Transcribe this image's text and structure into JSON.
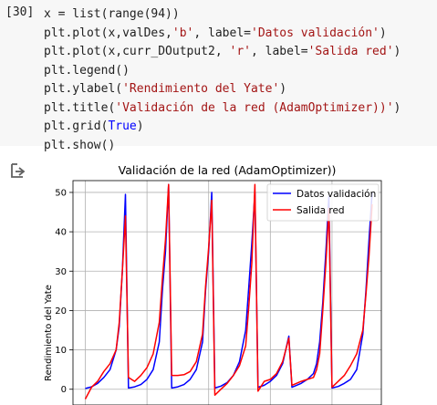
{
  "cell": {
    "execution_count": "[30]",
    "code": [
      {
        "parts": [
          {
            "t": "x = list(range(94))",
            "c": ""
          }
        ]
      },
      {
        "parts": [
          {
            "t": "plt.plot(x,valDes,",
            "c": ""
          },
          {
            "t": "'b'",
            "c": "k-str"
          },
          {
            "t": ", label=",
            "c": ""
          },
          {
            "t": "'Datos validación'",
            "c": "k-str"
          },
          {
            "t": ")",
            "c": ""
          }
        ]
      },
      {
        "parts": [
          {
            "t": "plt.plot(x,curr_DOutput2, ",
            "c": ""
          },
          {
            "t": "'r'",
            "c": "k-str"
          },
          {
            "t": ", label=",
            "c": ""
          },
          {
            "t": "'Salida red'",
            "c": "k-str"
          },
          {
            "t": ")",
            "c": ""
          }
        ]
      },
      {
        "parts": [
          {
            "t": "plt.legend()",
            "c": ""
          }
        ]
      },
      {
        "parts": [
          {
            "t": "plt.ylabel(",
            "c": ""
          },
          {
            "t": "'Rendimiento del Yate'",
            "c": "k-str"
          },
          {
            "t": ")",
            "c": ""
          }
        ]
      },
      {
        "parts": [
          {
            "t": "plt.title(",
            "c": ""
          },
          {
            "t": "'Validación de la red (AdamOptimizer))'",
            "c": "k-str"
          },
          {
            "t": ")",
            "c": ""
          }
        ]
      },
      {
        "parts": [
          {
            "t": "plt.grid(",
            "c": ""
          },
          {
            "t": "True",
            "c": "k-kw"
          },
          {
            "t": ")",
            "c": ""
          }
        ]
      },
      {
        "parts": [
          {
            "t": "plt.show()",
            "c": ""
          }
        ]
      }
    ],
    "output_icon": "output-arrow-icon"
  },
  "chart_data": {
    "type": "line",
    "title": "Validación de la red (AdamOptimizer))",
    "xlabel": "",
    "ylabel": "Rendimiento del Yate",
    "xlim": [
      -4,
      96
    ],
    "ylim": [
      -4,
      53
    ],
    "xticks": [
      0,
      20,
      40,
      60,
      80
    ],
    "yticks": [
      0,
      10,
      20,
      30,
      40,
      50
    ],
    "grid": true,
    "legend_position": "top-right",
    "series": [
      {
        "name": "Datos validación",
        "color": "#0000ff",
        "points": [
          [
            0,
            0.2
          ],
          [
            2,
            0.6
          ],
          [
            4,
            1.5
          ],
          [
            6,
            3
          ],
          [
            8,
            5
          ],
          [
            10,
            10
          ],
          [
            11,
            16
          ],
          [
            12,
            30
          ],
          [
            13,
            49.5
          ],
          [
            14,
            0.3
          ],
          [
            16,
            0.6
          ],
          [
            18,
            1.2
          ],
          [
            20,
            2.5
          ],
          [
            22,
            5
          ],
          [
            24,
            12
          ],
          [
            25,
            25
          ],
          [
            26,
            35
          ],
          [
            27,
            52
          ],
          [
            28,
            0.3
          ],
          [
            30,
            0.6
          ],
          [
            32,
            1.2
          ],
          [
            34,
            2.5
          ],
          [
            36,
            5
          ],
          [
            38,
            12
          ],
          [
            39,
            25
          ],
          [
            40,
            35
          ],
          [
            41,
            50
          ],
          [
            42,
            0.3
          ],
          [
            44,
            0.8
          ],
          [
            46,
            1.7
          ],
          [
            48,
            3.5
          ],
          [
            50,
            7
          ],
          [
            52,
            15
          ],
          [
            53,
            26
          ],
          [
            54,
            37
          ],
          [
            55,
            50
          ],
          [
            56,
            0.5
          ],
          [
            58,
            1
          ],
          [
            60,
            2
          ],
          [
            62,
            3.5
          ],
          [
            64,
            6.5
          ],
          [
            65,
            10
          ],
          [
            66,
            13.5
          ],
          [
            67,
            0.5
          ],
          [
            70,
            1.5
          ],
          [
            72,
            2.5
          ],
          [
            74,
            4
          ],
          [
            75,
            6.5
          ],
          [
            76,
            12
          ],
          [
            77,
            22
          ],
          [
            78,
            35
          ],
          [
            79,
            49
          ],
          [
            80,
            0.3
          ],
          [
            82,
            0.7
          ],
          [
            84,
            1.5
          ],
          [
            86,
            2.5
          ],
          [
            88,
            5
          ],
          [
            90,
            14
          ],
          [
            91,
            25
          ],
          [
            92,
            38
          ],
          [
            93,
            50
          ]
        ]
      },
      {
        "name": "Salida red",
        "color": "#ff0000",
        "points": [
          [
            0,
            -2.5
          ],
          [
            2,
            0.5
          ],
          [
            4,
            2
          ],
          [
            6,
            4.5
          ],
          [
            8,
            6.5
          ],
          [
            10,
            10
          ],
          [
            11,
            17
          ],
          [
            12,
            30
          ],
          [
            13,
            44
          ],
          [
            14,
            3
          ],
          [
            16,
            2
          ],
          [
            18,
            3.5
          ],
          [
            20,
            5.5
          ],
          [
            22,
            9
          ],
          [
            24,
            17
          ],
          [
            25,
            28
          ],
          [
            26,
            38
          ],
          [
            27,
            52
          ],
          [
            28,
            3.5
          ],
          [
            30,
            3.5
          ],
          [
            32,
            3.7
          ],
          [
            34,
            4.5
          ],
          [
            36,
            7
          ],
          [
            38,
            14
          ],
          [
            39,
            26
          ],
          [
            40,
            36
          ],
          [
            41,
            48
          ],
          [
            42,
            -1.5
          ],
          [
            44,
            0
          ],
          [
            46,
            1.5
          ],
          [
            48,
            3.5
          ],
          [
            50,
            6
          ],
          [
            52,
            11
          ],
          [
            53,
            21
          ],
          [
            54,
            32
          ],
          [
            55,
            52
          ],
          [
            56,
            -0.5
          ],
          [
            58,
            2
          ],
          [
            60,
            2.5
          ],
          [
            62,
            4
          ],
          [
            64,
            7
          ],
          [
            65,
            10
          ],
          [
            66,
            13
          ],
          [
            67,
            1
          ],
          [
            70,
            2
          ],
          [
            72,
            2.5
          ],
          [
            74,
            3
          ],
          [
            75,
            5
          ],
          [
            76,
            9
          ],
          [
            77,
            20
          ],
          [
            78,
            32
          ],
          [
            79,
            46
          ],
          [
            80,
            0.5
          ],
          [
            82,
            2
          ],
          [
            84,
            3.5
          ],
          [
            86,
            6
          ],
          [
            88,
            9
          ],
          [
            90,
            15
          ],
          [
            91,
            24
          ],
          [
            92,
            34
          ],
          [
            93,
            47
          ]
        ]
      }
    ]
  }
}
